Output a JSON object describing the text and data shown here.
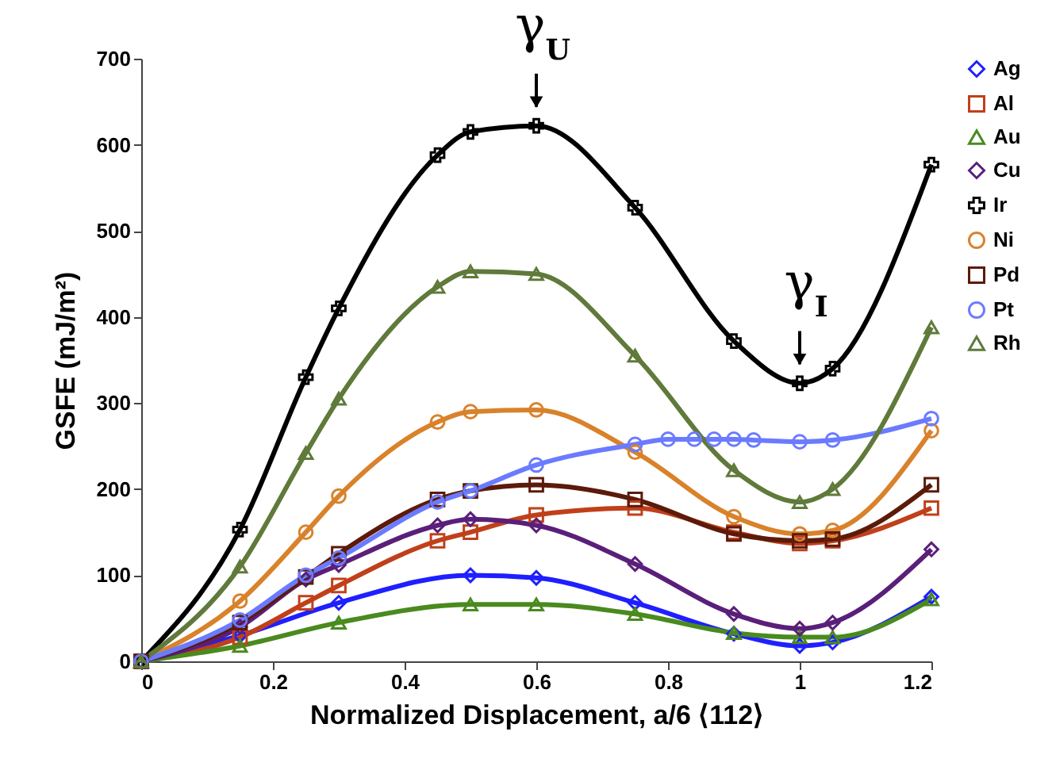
{
  "chart_data": {
    "type": "line",
    "xlabel": "Normalized Displacement, a/6 ⟨112⟩",
    "ylabel": "GSFE (mJ/m²)",
    "xlim": [
      0,
      1.2
    ],
    "xticks": [
      0,
      0.2,
      0.4,
      0.6,
      0.8,
      1,
      1.2
    ],
    "ylim": [
      0,
      700
    ],
    "yticks": [
      0,
      100,
      200,
      300,
      400,
      500,
      600,
      700
    ],
    "grid": false,
    "legend": "right",
    "line_style": "solid",
    "annotations": [
      {
        "text": "γ$_{U}$",
        "x": 0.6,
        "y": 622
      },
      {
        "text": "γ$_{I}$",
        "x": 1.0,
        "y": 323
      }
    ],
    "series": [
      {
        "name": "Ag",
        "color": "#1f1fff",
        "marker": "diamond",
        "x": [
          0,
          0.15,
          0.3,
          0.5,
          0.6,
          0.75,
          0.9,
          1.0,
          1.05,
          1.2
        ],
        "values": [
          0,
          30,
          68,
          100,
          97,
          68,
          32,
          18,
          22,
          75
        ]
      },
      {
        "name": "Al",
        "color": "#c0401a",
        "marker": "square",
        "x": [
          0,
          0.15,
          0.25,
          0.3,
          0.45,
          0.5,
          0.6,
          0.75,
          0.9,
          1.0,
          1.05,
          1.2
        ],
        "values": [
          0,
          28,
          68,
          88,
          140,
          150,
          170,
          178,
          150,
          137,
          140,
          178
        ]
      },
      {
        "name": "Au",
        "color": "#4a8a1e",
        "marker": "triangle",
        "x": [
          0,
          0.15,
          0.3,
          0.5,
          0.6,
          0.75,
          0.9,
          1.0,
          1.05,
          1.2
        ],
        "values": [
          0,
          18,
          45,
          66,
          66,
          55,
          33,
          28,
          28,
          72
        ]
      },
      {
        "name": "Cu",
        "color": "#5a1f7a",
        "marker": "diamond",
        "x": [
          0,
          0.15,
          0.25,
          0.3,
          0.45,
          0.5,
          0.6,
          0.75,
          0.9,
          1.0,
          1.05,
          1.2
        ],
        "values": [
          0,
          40,
          95,
          112,
          158,
          165,
          158,
          113,
          55,
          38,
          45,
          130
        ]
      },
      {
        "name": "Ir",
        "color": "#000000",
        "marker": "cross",
        "x": [
          0,
          0.15,
          0.25,
          0.3,
          0.45,
          0.5,
          0.6,
          0.75,
          0.9,
          1.0,
          1.05,
          1.2
        ],
        "values": [
          0,
          153,
          330,
          410,
          588,
          615,
          622,
          527,
          372,
          323,
          340,
          577
        ]
      },
      {
        "name": "Ni",
        "color": "#d9822b",
        "marker": "circle",
        "x": [
          0,
          0.15,
          0.25,
          0.3,
          0.45,
          0.5,
          0.6,
          0.75,
          0.9,
          1.0,
          1.05,
          1.2
        ],
        "values": [
          0,
          70,
          150,
          192,
          278,
          290,
          292,
          243,
          168,
          148,
          152,
          268
        ]
      },
      {
        "name": "Pd",
        "color": "#5c1a0a",
        "marker": "square",
        "x": [
          0,
          0.15,
          0.25,
          0.3,
          0.45,
          0.5,
          0.6,
          0.75,
          0.9,
          1.0,
          1.05,
          1.2
        ],
        "values": [
          0,
          45,
          98,
          125,
          188,
          198,
          205,
          188,
          148,
          140,
          142,
          205
        ]
      },
      {
        "name": "Pt",
        "color": "#6b7bff",
        "marker": "circle",
        "x": [
          0,
          0.15,
          0.25,
          0.3,
          0.45,
          0.5,
          0.6,
          0.75,
          0.8,
          0.84,
          0.87,
          0.9,
          0.93,
          1.0,
          1.05,
          1.2
        ],
        "values": [
          0,
          48,
          100,
          120,
          185,
          198,
          228,
          252,
          258,
          258,
          258,
          258,
          257,
          255,
          257,
          282
        ]
      },
      {
        "name": "Rh",
        "color": "#5f7a3a",
        "marker": "triangle",
        "x": [
          0,
          0.15,
          0.25,
          0.3,
          0.45,
          0.5,
          0.6,
          0.75,
          0.9,
          1.0,
          1.05,
          1.2
        ],
        "values": [
          0,
          110,
          242,
          305,
          435,
          453,
          450,
          355,
          222,
          185,
          200,
          388
        ]
      }
    ]
  }
}
